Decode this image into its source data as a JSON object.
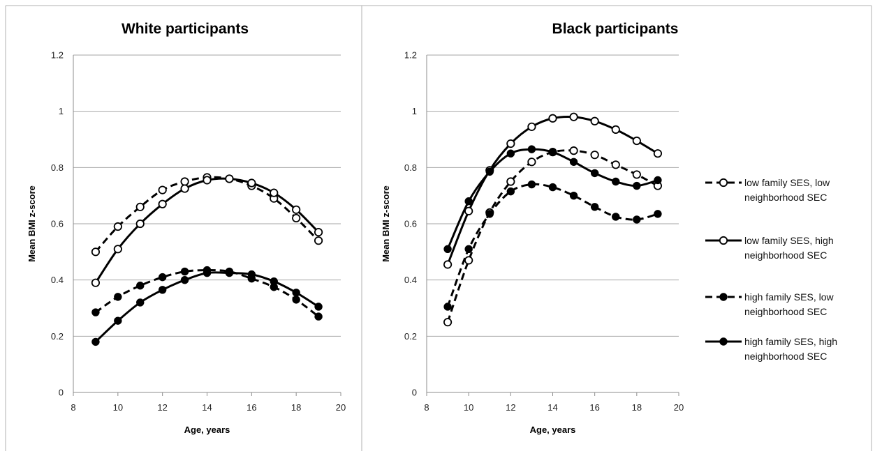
{
  "chart_data": [
    {
      "type": "line",
      "title": "White participants",
      "xlabel": "Age, years",
      "ylabel": "Mean BMI z-score",
      "xlim": [
        8,
        20
      ],
      "ylim": [
        0,
        1.2
      ],
      "xticks": [
        8,
        10,
        12,
        14,
        16,
        18,
        20
      ],
      "yticks": [
        0,
        0.2,
        0.4,
        0.6,
        0.8,
        1,
        1.2
      ],
      "grid": "horizontal",
      "x": [
        9,
        10,
        11,
        12,
        13,
        14,
        15,
        16,
        17,
        18,
        19
      ],
      "series": [
        {
          "name": "low family SES, low neighborhood SEC",
          "style": "dashed",
          "marker": "open-circle",
          "values": [
            0.5,
            0.59,
            0.66,
            0.72,
            0.75,
            0.765,
            0.76,
            0.735,
            0.69,
            0.62,
            0.54
          ]
        },
        {
          "name": "low family SES, high neighborhood SEC",
          "style": "solid",
          "marker": "open-circle",
          "values": [
            0.39,
            0.51,
            0.6,
            0.67,
            0.725,
            0.755,
            0.76,
            0.745,
            0.71,
            0.65,
            0.57
          ]
        },
        {
          "name": "high family SES, low neighborhood SEC",
          "style": "dashed",
          "marker": "filled-circle",
          "values": [
            0.285,
            0.34,
            0.38,
            0.41,
            0.43,
            0.435,
            0.43,
            0.405,
            0.375,
            0.33,
            0.27
          ]
        },
        {
          "name": "high family SES, high neighborhood SEC",
          "style": "solid",
          "marker": "filled-circle",
          "values": [
            0.18,
            0.255,
            0.32,
            0.365,
            0.4,
            0.425,
            0.425,
            0.42,
            0.395,
            0.355,
            0.305
          ]
        }
      ]
    },
    {
      "type": "line",
      "title": "Black participants",
      "xlabel": "Age, years",
      "ylabel": "Mean BMI z-score",
      "xlim": [
        8,
        20
      ],
      "ylim": [
        0,
        1.2
      ],
      "xticks": [
        8,
        10,
        12,
        14,
        16,
        18,
        20
      ],
      "yticks": [
        0,
        0.2,
        0.4,
        0.6,
        0.8,
        1,
        1.2
      ],
      "grid": "horizontal",
      "x": [
        9,
        10,
        11,
        12,
        13,
        14,
        15,
        16,
        17,
        18,
        19
      ],
      "series": [
        {
          "name": "low family SES, low neighborhood SEC",
          "style": "dashed",
          "marker": "open-circle",
          "values": [
            0.25,
            0.47,
            0.64,
            0.75,
            0.82,
            0.855,
            0.86,
            0.845,
            0.81,
            0.775,
            0.735
          ]
        },
        {
          "name": "low family SES, high neighborhood SEC",
          "style": "solid",
          "marker": "open-circle",
          "values": [
            0.455,
            0.645,
            0.79,
            0.885,
            0.945,
            0.975,
            0.98,
            0.965,
            0.935,
            0.895,
            0.85
          ]
        },
        {
          "name": "high family SES, low neighborhood SEC",
          "style": "dashed",
          "marker": "filled-circle",
          "values": [
            0.305,
            0.51,
            0.635,
            0.715,
            0.74,
            0.73,
            0.7,
            0.66,
            0.625,
            0.615,
            0.635
          ]
        },
        {
          "name": "high family SES, high neighborhood SEC",
          "style": "solid",
          "marker": "filled-circle",
          "values": [
            0.51,
            0.68,
            0.785,
            0.85,
            0.865,
            0.855,
            0.82,
            0.78,
            0.75,
            0.735,
            0.755
          ]
        }
      ]
    }
  ],
  "legend": {
    "placement": "right",
    "items": [
      {
        "line1": "low family SES, low",
        "line2": "neighborhood SEC",
        "style": "dashed",
        "marker": "open-circle"
      },
      {
        "line1": "low family SES, high",
        "line2": "neighborhood SEC",
        "style": "solid",
        "marker": "open-circle"
      },
      {
        "line1": "high family SES, low",
        "line2": "neighborhood SEC",
        "style": "dashed",
        "marker": "filled-circle"
      },
      {
        "line1": "high family SES, high",
        "line2": "neighborhood SEC",
        "style": "solid",
        "marker": "filled-circle"
      }
    ]
  },
  "colors": {
    "line": "#000000",
    "grid": "#a6a6a6",
    "axis": "#8c8c8c",
    "border": "#b0b0b0",
    "background": "#ffffff"
  }
}
